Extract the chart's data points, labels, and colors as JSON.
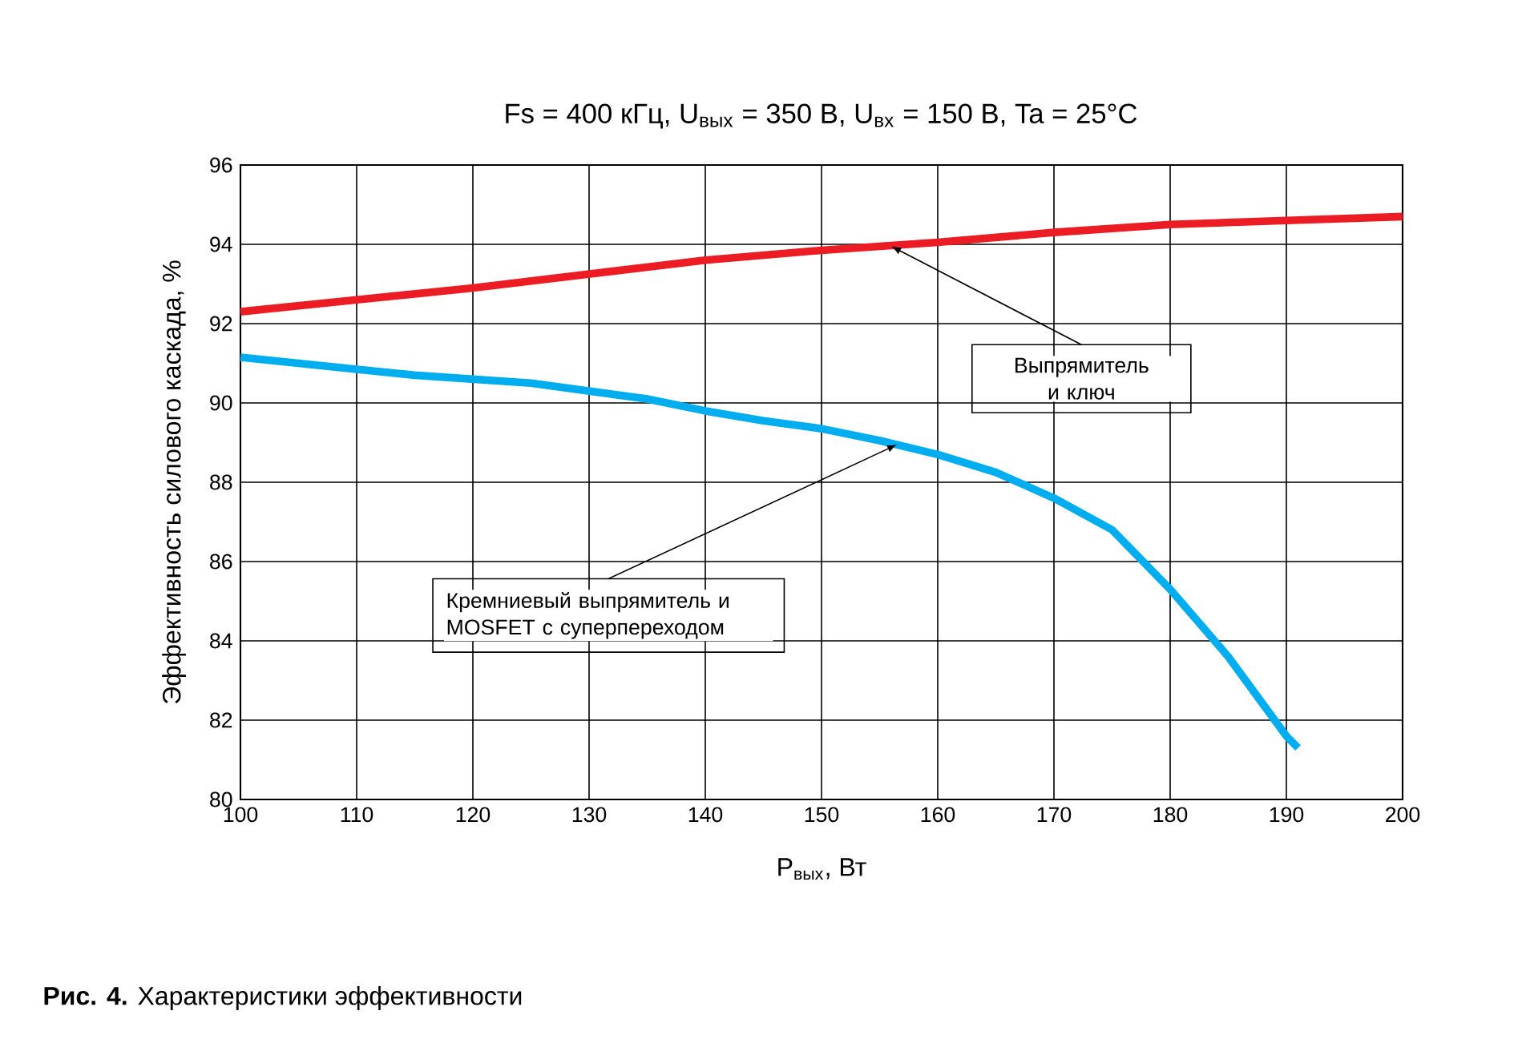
{
  "chart_data": {
    "type": "line",
    "title": "Fs = 400 кГц, U$_{вых}$ = 350 В, U$_{вх}$ = 150 В, Ta = 25°C",
    "xlabel": "P$_{вых}$, Вт",
    "ylabel": "Эффективность силового каскада, %",
    "series": [
      {
        "color": "#ec1c24",
        "x": [
          100,
          110,
          120,
          130,
          140,
          150,
          160,
          170,
          180,
          190,
          200
        ],
        "values": [
          92.3,
          92.6,
          92.9,
          93.25,
          93.6,
          93.85,
          94.05,
          94.3,
          94.5,
          94.6,
          94.7
        ]
      },
      {
        "color": "#00aeef",
        "x": [
          100,
          110,
          115,
          125,
          135,
          140,
          145,
          150,
          155,
          160,
          165,
          170,
          175,
          180,
          185,
          190,
          191
        ],
        "values": [
          91.15,
          90.85,
          90.7,
          90.5,
          90.1,
          89.8,
          89.55,
          89.35,
          89.05,
          88.7,
          88.25,
          87.6,
          86.8,
          85.3,
          83.6,
          81.6,
          81.3
        ]
      }
    ],
    "annotations": [
      {
        "text": "Выпрямитель и ключ",
        "x": 156,
        "y": 93.95
      },
      {
        "text": "Кремниевый выпрямитель и MOSFET с суперпереходом",
        "x": 156.5,
        "y": 88.95
      },
      "**Рис. 4.** Характеристики эффективности"
    ],
    "xlim": [
      100,
      200
    ],
    "ylim": [
      80,
      96
    ],
    "xticks": [
      100,
      110,
      120,
      130,
      140,
      150,
      160,
      170,
      180,
      190,
      200
    ],
    "yticks": [
      80,
      82,
      84,
      86,
      88,
      90,
      92,
      94,
      96
    ],
    "grid": true,
    "line_style": "solid",
    "marker": "none"
  }
}
